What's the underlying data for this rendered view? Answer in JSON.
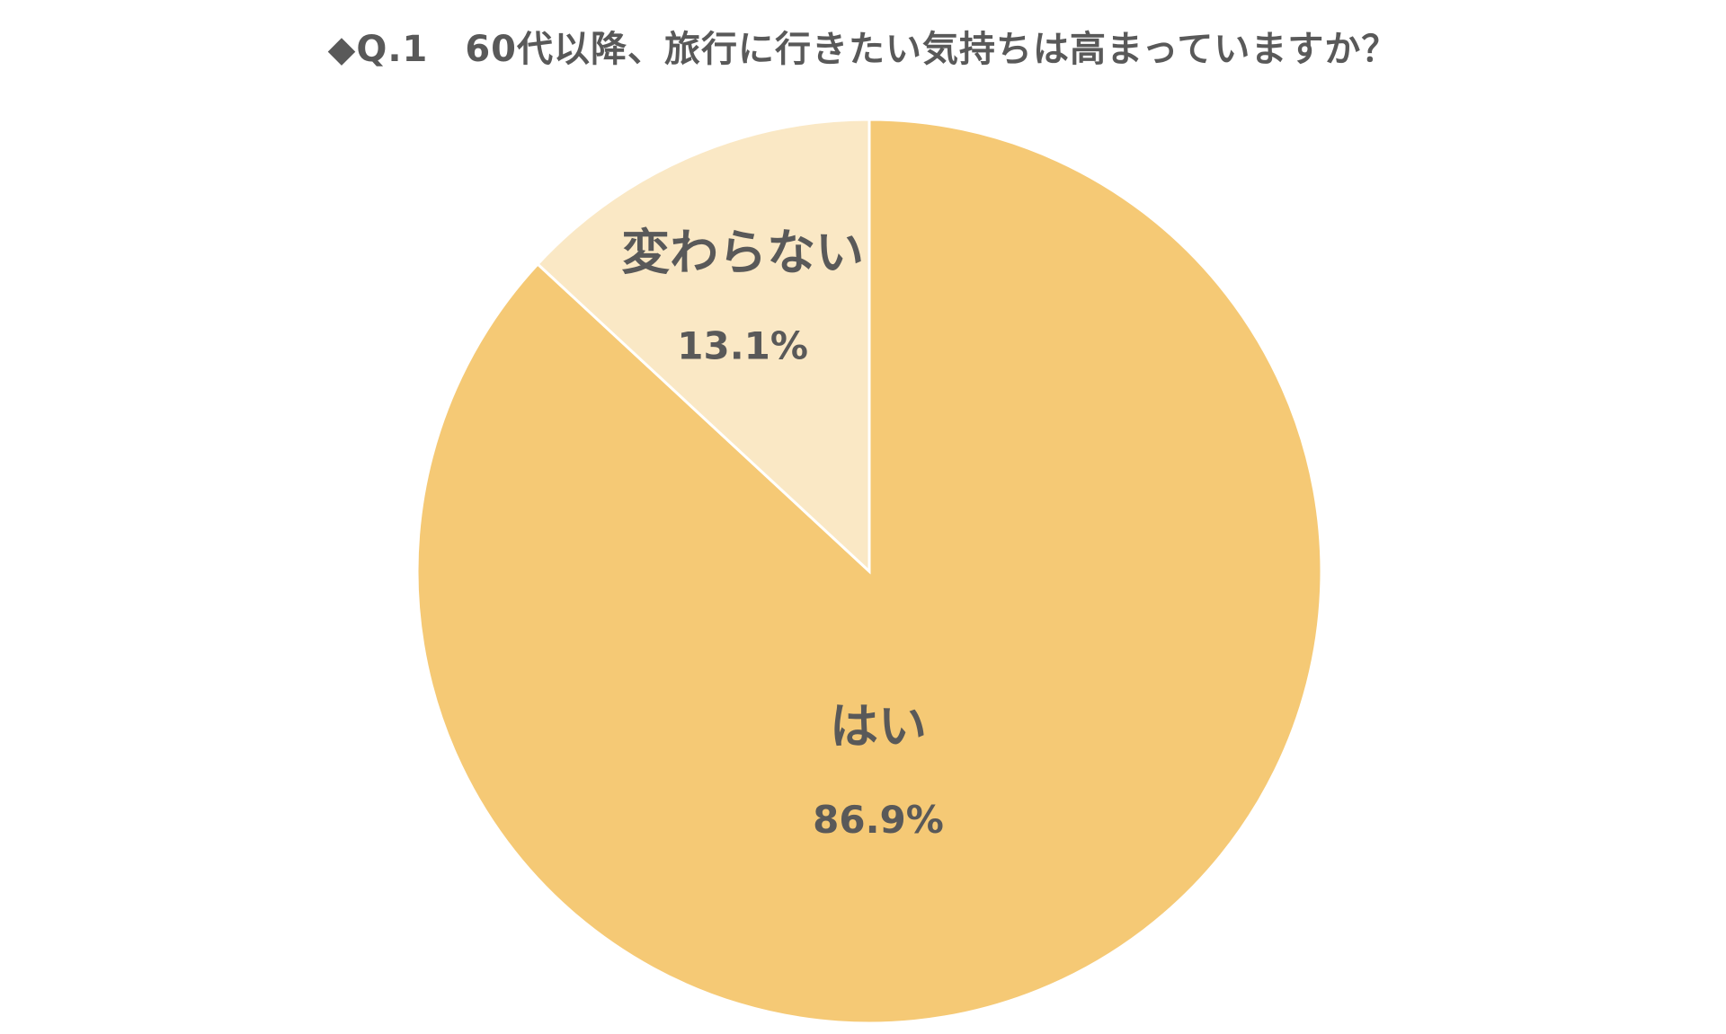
{
  "chart_data": {
    "type": "pie",
    "title": "◆Q.1　60代以降、旅行に行きたい気持ちは高まっていますか？",
    "slices": [
      {
        "label": "はい",
        "value": 86.9,
        "value_label": "86.9%",
        "color": "#F5C975"
      },
      {
        "label": "変わらない",
        "value": 13.1,
        "value_label": "13.1%",
        "color": "#FAE8C5"
      }
    ],
    "start_angle": "12 o'clock",
    "direction": "clockwise",
    "legend": "none",
    "slice_border_color": "#FFFFFF"
  }
}
